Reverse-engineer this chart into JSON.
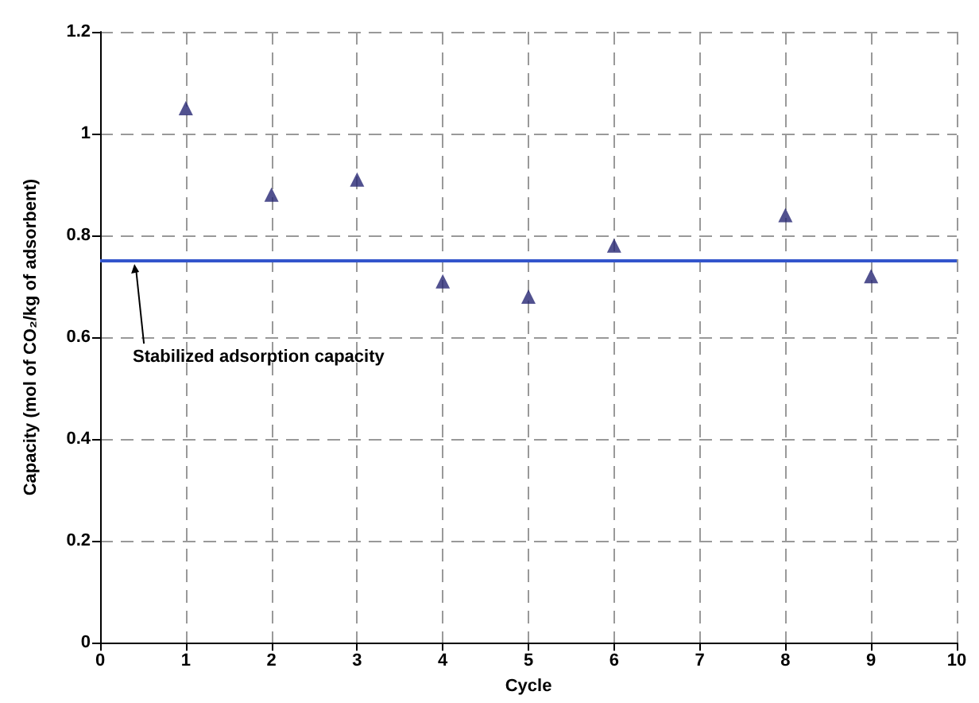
{
  "chart_data": {
    "type": "scatter",
    "xlabel": "Cycle",
    "ylabel": "Capacity (mol of CO₂/kg of adsorbent)",
    "x": [
      1,
      2,
      3,
      4,
      5,
      6,
      8,
      9
    ],
    "series": [
      {
        "color": "#262673",
        "values": [
          1.05,
          0.88,
          0.91,
          0.71,
          0.68,
          0.78,
          0.84,
          0.72
        ]
      }
    ],
    "xlim": [
      0,
      10
    ],
    "xticks": [
      0,
      1,
      2,
      3,
      4,
      5,
      6,
      7,
      8,
      9,
      10
    ],
    "ylim": [
      0,
      1.2
    ],
    "yticks": [
      0,
      0.2,
      0.4,
      0.6,
      0.8,
      1,
      1.2
    ],
    "ref_lines": [
      {
        "axis": "y",
        "value": 0.75,
        "label": "Stabilized adsorption capacity",
        "color": "#3355cc",
        "line_style": "solid"
      }
    ],
    "grid": true,
    "marker": "triangle"
  }
}
